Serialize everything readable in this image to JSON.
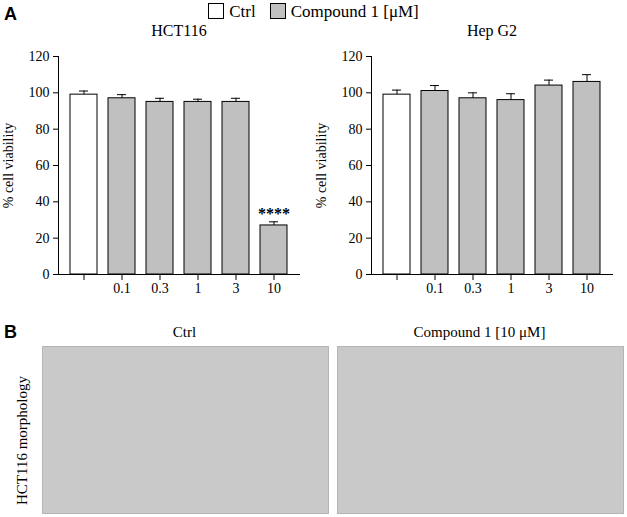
{
  "panel_labels": [
    "A",
    "B"
  ],
  "chart_data": [
    {
      "type": "bar",
      "title": "HCT116",
      "legend": "top",
      "categories": [
        null,
        "0.1",
        "0.3",
        "1",
        "3",
        "10"
      ],
      "series": [
        {
          "name": "Ctrl",
          "color": "#ffffff",
          "values": [
            99,
            null,
            null,
            null,
            null,
            null
          ],
          "errors": [
            2,
            null,
            null,
            null,
            null,
            null
          ]
        },
        {
          "name": "Compound 1 [μM]",
          "color": "#c0c0c0",
          "values": [
            null,
            97,
            95,
            95,
            95,
            27
          ],
          "errors": [
            null,
            2,
            2,
            1.5,
            2,
            2
          ]
        }
      ],
      "y_label": "% cell viability",
      "ylim": [
        0,
        120
      ],
      "yticks": [
        0,
        20,
        40,
        60,
        80,
        100,
        120
      ],
      "annotations": [
        {
          "text": "****",
          "series": "Compound 1 [μM]",
          "category_index": 5
        }
      ]
    },
    {
      "type": "bar",
      "title": "Hep G2",
      "legend": "top",
      "categories": [
        null,
        "0.1",
        "0.3",
        "1",
        "3",
        "10"
      ],
      "series": [
        {
          "name": "Ctrl",
          "color": "#ffffff",
          "values": [
            99,
            null,
            null,
            null,
            null,
            null
          ],
          "errors": [
            2.5,
            null,
            null,
            null,
            null,
            null
          ]
        },
        {
          "name": "Compound 1 [μM]",
          "color": "#c0c0c0",
          "values": [
            null,
            101,
            97,
            96,
            104,
            106
          ],
          "errors": [
            null,
            3,
            3,
            3.5,
            3,
            4
          ]
        }
      ],
      "y_label": "% cell viability",
      "ylim": [
        0,
        120
      ],
      "yticks": [
        0,
        20,
        40,
        60,
        80,
        100,
        120
      ],
      "annotations": []
    }
  ],
  "images": {
    "row_label": "HCT116 morphology",
    "titles": [
      "Ctrl",
      "Compound 1 [10 μM]"
    ]
  }
}
